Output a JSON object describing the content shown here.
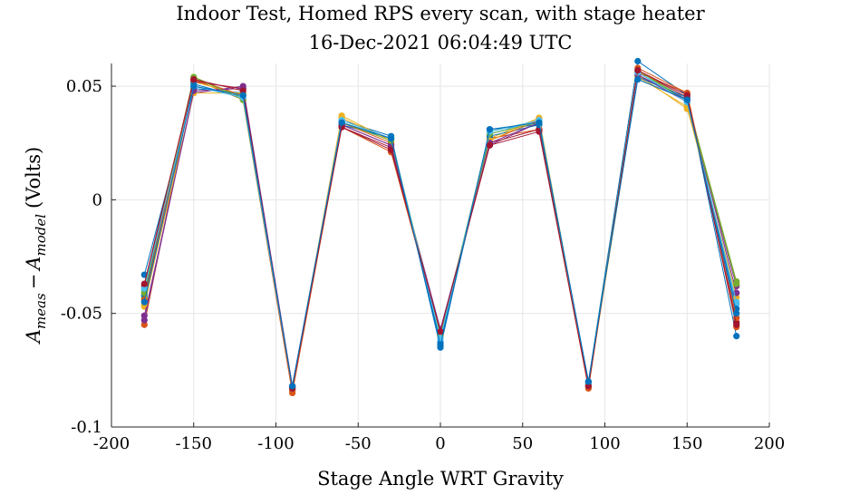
{
  "chart_data": {
    "type": "line",
    "title": "Indoor Test, Homed RPS every scan, with stage heater",
    "subtitle": "16-Dec-2021 06:04:49 UTC",
    "xlabel": "Stage Angle WRT Gravity",
    "ylabel": "A_meas − A_model (Volts)",
    "ylabel_parts": {
      "sym": "A",
      "sub1": "meas",
      "minus": "−",
      "sub2": "model",
      "unit": "(Volts)"
    },
    "xlim": [
      -200,
      200
    ],
    "ylim": [
      -0.1,
      0.06
    ],
    "xticks": [
      -200,
      -150,
      -100,
      -50,
      0,
      50,
      100,
      150,
      200
    ],
    "xtick_labels": [
      "-200",
      "-150",
      "-100",
      "-50",
      "0",
      "50",
      "100",
      "150",
      "200"
    ],
    "yticks": [
      -0.1,
      -0.05,
      0,
      0.05
    ],
    "ytick_labels": [
      "-0.1",
      "-0.05",
      "0",
      "0.05"
    ],
    "grid": true,
    "x": [
      -180,
      -150,
      -120,
      -90,
      -60,
      -30,
      0,
      30,
      60,
      90,
      120,
      150,
      180
    ],
    "series": [
      {
        "color": "#0072BD",
        "values": [
          -0.033,
          0.049,
          0.047,
          -0.082,
          0.035,
          0.028,
          -0.065,
          0.031,
          0.033,
          -0.08,
          0.061,
          0.046,
          -0.06
        ]
      },
      {
        "color": "#D95319",
        "values": [
          -0.055,
          0.053,
          0.044,
          -0.085,
          0.032,
          0.021,
          -0.059,
          0.027,
          0.031,
          -0.083,
          0.058,
          0.047,
          -0.056
        ]
      },
      {
        "color": "#EDB120",
        "values": [
          -0.047,
          0.052,
          0.046,
          -0.084,
          0.037,
          0.026,
          -0.061,
          0.027,
          0.036,
          -0.082,
          0.055,
          0.04,
          -0.036
        ]
      },
      {
        "color": "#7E2F8E",
        "values": [
          -0.051,
          0.047,
          0.05,
          -0.082,
          0.033,
          0.024,
          -0.057,
          0.024,
          0.034,
          -0.081,
          0.055,
          0.043,
          -0.038
        ]
      },
      {
        "color": "#77AC30",
        "values": [
          -0.043,
          0.054,
          0.045,
          -0.083,
          0.034,
          0.027,
          -0.06,
          0.03,
          0.035,
          -0.081,
          0.057,
          0.044,
          -0.036
        ]
      },
      {
        "color": "#4DBEEE",
        "values": [
          -0.04,
          0.05,
          0.046,
          -0.083,
          0.035,
          0.027,
          -0.062,
          0.029,
          0.035,
          -0.081,
          0.056,
          0.044,
          -0.046
        ]
      },
      {
        "color": "#A2142F",
        "values": [
          -0.038,
          0.052,
          0.049,
          -0.083,
          0.032,
          0.023,
          -0.058,
          0.025,
          0.031,
          -0.082,
          0.057,
          0.045,
          -0.054
        ]
      },
      {
        "color": "#0072BD",
        "values": [
          -0.042,
          0.051,
          0.045,
          -0.082,
          0.033,
          0.027,
          -0.063,
          0.028,
          0.033,
          -0.08,
          0.054,
          0.045,
          -0.048
        ]
      },
      {
        "color": "#D95319",
        "values": [
          -0.044,
          0.053,
          0.046,
          -0.084,
          0.034,
          0.025,
          -0.059,
          0.026,
          0.035,
          -0.082,
          0.056,
          0.047,
          -0.052
        ]
      },
      {
        "color": "#EDB120",
        "values": [
          -0.046,
          0.047,
          0.047,
          -0.083,
          0.036,
          0.026,
          -0.06,
          0.026,
          0.036,
          -0.082,
          0.054,
          0.041,
          -0.043
        ]
      },
      {
        "color": "#7E2F8E",
        "values": [
          -0.053,
          0.048,
          0.049,
          -0.082,
          0.033,
          0.024,
          -0.058,
          0.025,
          0.034,
          -0.081,
          0.055,
          0.044,
          -0.041
        ]
      },
      {
        "color": "#77AC30",
        "values": [
          -0.041,
          0.054,
          0.044,
          -0.083,
          0.034,
          0.026,
          -0.06,
          0.029,
          0.034,
          -0.081,
          0.057,
          0.043,
          -0.037
        ]
      },
      {
        "color": "#4DBEEE",
        "values": [
          -0.039,
          0.05,
          0.045,
          -0.083,
          0.035,
          0.027,
          -0.061,
          0.03,
          0.035,
          -0.081,
          0.056,
          0.043,
          -0.045
        ]
      },
      {
        "color": "#A2142F",
        "values": [
          -0.037,
          0.053,
          0.048,
          -0.083,
          0.032,
          0.022,
          -0.058,
          0.024,
          0.03,
          -0.082,
          0.057,
          0.046,
          -0.055
        ]
      },
      {
        "color": "#0072BD",
        "values": [
          -0.045,
          0.05,
          0.046,
          -0.082,
          0.034,
          0.027,
          -0.064,
          0.031,
          0.034,
          -0.08,
          0.053,
          0.044,
          -0.05
        ]
      }
    ]
  }
}
